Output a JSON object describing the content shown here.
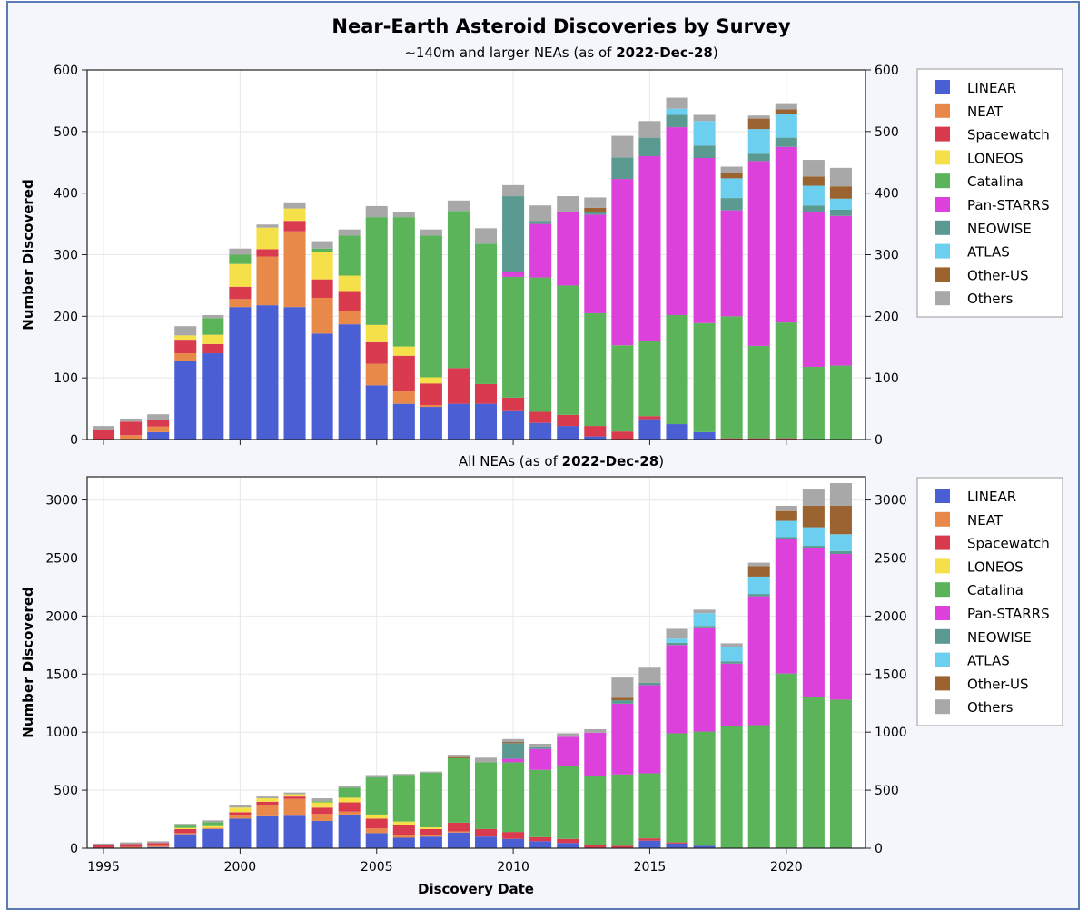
{
  "title": "Near-Earth Asteroid Discoveries by Survey",
  "subtitle_top": {
    "prefix": "~140m and larger NEAs (as of ",
    "date": "2022-Dec-28",
    "suffix": ")"
  },
  "subtitle_bottom": {
    "prefix": "All NEAs (as of ",
    "date": "2022-Dec-28",
    "suffix": ")"
  },
  "xlabel": "Discovery Date",
  "ylabel": "Number Discovered",
  "colors": {
    "LINEAR": "#4a5fd4",
    "NEAT": "#e8894a",
    "Spacewatch": "#d93a4e",
    "LONEOS": "#f6e04a",
    "Catalina": "#5bb35a",
    "Pan-STARRS": "#dc41dc",
    "NEOWISE": "#5a9a90",
    "ATLAS": "#6dcfef",
    "Other-US": "#9a6330",
    "Others": "#a8a8a8"
  },
  "chart_data": [
    {
      "type": "bar",
      "stacked": true,
      "title": "Near-Earth Asteroid Discoveries by Survey",
      "subtitle": "~140m and larger NEAs (as of 2022-Dec-28)",
      "xlabel": "",
      "ylabel": "Number Discovered",
      "ylim": [
        0,
        600
      ],
      "yticks": [
        0,
        100,
        200,
        300,
        400,
        500,
        600
      ],
      "xticks": [
        1995,
        2000,
        2005,
        2010,
        2015,
        2020
      ],
      "grid": true,
      "legend": "right",
      "categories": [
        1995,
        1996,
        1997,
        1998,
        1999,
        2000,
        2001,
        2002,
        2003,
        2004,
        2005,
        2006,
        2007,
        2008,
        2009,
        2010,
        2011,
        2012,
        2013,
        2014,
        2015,
        2016,
        2017,
        2018,
        2019,
        2020,
        2021,
        2022
      ],
      "series": [
        {
          "name": "LINEAR",
          "values": [
            0,
            0,
            12,
            128,
            140,
            215,
            218,
            215,
            172,
            187,
            88,
            58,
            53,
            58,
            58,
            46,
            27,
            22,
            5,
            0,
            33,
            25,
            12,
            0,
            0,
            0,
            0,
            0
          ]
        },
        {
          "name": "NEAT",
          "values": [
            0,
            7,
            9,
            12,
            0,
            13,
            79,
            123,
            58,
            22,
            35,
            20,
            3,
            0,
            0,
            0,
            0,
            0,
            0,
            0,
            0,
            0,
            0,
            0,
            0,
            0,
            0,
            0
          ]
        },
        {
          "name": "Spacewatch",
          "values": [
            15,
            22,
            10,
            22,
            15,
            20,
            12,
            17,
            30,
            32,
            35,
            58,
            35,
            58,
            32,
            22,
            18,
            18,
            17,
            13,
            5,
            0,
            0,
            2,
            2,
            2,
            0,
            0
          ]
        },
        {
          "name": "LONEOS",
          "values": [
            0,
            0,
            0,
            7,
            15,
            37,
            35,
            20,
            45,
            25,
            28,
            15,
            10,
            0,
            0,
            0,
            0,
            0,
            0,
            0,
            0,
            0,
            0,
            0,
            0,
            0,
            0,
            0
          ]
        },
        {
          "name": "Catalina",
          "values": [
            0,
            0,
            0,
            0,
            27,
            15,
            0,
            0,
            5,
            65,
            175,
            210,
            230,
            255,
            228,
            196,
            218,
            210,
            183,
            140,
            122,
            177,
            177,
            198,
            150,
            188,
            118,
            120
          ]
        },
        {
          "name": "Pan-STARRS",
          "values": [
            0,
            0,
            0,
            0,
            0,
            0,
            0,
            0,
            0,
            0,
            0,
            0,
            0,
            0,
            0,
            8,
            87,
            120,
            160,
            270,
            300,
            305,
            268,
            172,
            300,
            285,
            252,
            243
          ]
        },
        {
          "name": "NEOWISE",
          "values": [
            0,
            0,
            0,
            0,
            0,
            0,
            0,
            0,
            0,
            0,
            0,
            0,
            0,
            0,
            0,
            123,
            5,
            0,
            5,
            35,
            30,
            20,
            20,
            20,
            12,
            15,
            10,
            10
          ]
        },
        {
          "name": "ATLAS",
          "values": [
            0,
            0,
            0,
            0,
            0,
            0,
            0,
            0,
            0,
            0,
            0,
            0,
            0,
            0,
            0,
            0,
            0,
            0,
            0,
            0,
            0,
            10,
            40,
            32,
            40,
            38,
            32,
            18
          ]
        },
        {
          "name": "Other-US",
          "values": [
            0,
            0,
            0,
            0,
            0,
            0,
            0,
            0,
            0,
            0,
            0,
            0,
            0,
            0,
            0,
            0,
            0,
            0,
            6,
            0,
            0,
            0,
            0,
            9,
            17,
            8,
            15,
            20
          ]
        },
        {
          "name": "Others",
          "values": [
            7,
            5,
            10,
            15,
            5,
            10,
            5,
            10,
            12,
            10,
            18,
            8,
            10,
            17,
            25,
            18,
            25,
            25,
            17,
            35,
            27,
            18,
            10,
            10,
            5,
            10,
            27,
            30
          ]
        }
      ]
    },
    {
      "type": "bar",
      "stacked": true,
      "subtitle": "All NEAs (as of 2022-Dec-28)",
      "xlabel": "Discovery Date",
      "ylabel": "Number Discovered",
      "ylim": [
        0,
        3200
      ],
      "yticks": [
        0,
        500,
        1000,
        1500,
        2000,
        2500,
        3000
      ],
      "xticks": [
        1995,
        2000,
        2005,
        2010,
        2015,
        2020
      ],
      "grid": true,
      "legend": "right",
      "categories": [
        1995,
        1996,
        1997,
        1998,
        1999,
        2000,
        2001,
        2002,
        2003,
        2004,
        2005,
        2006,
        2007,
        2008,
        2009,
        2010,
        2011,
        2012,
        2013,
        2014,
        2015,
        2016,
        2017,
        2018,
        2019,
        2020,
        2021,
        2022
      ],
      "series": [
        {
          "name": "LINEAR",
          "values": [
            0,
            0,
            10,
            120,
            165,
            255,
            275,
            280,
            235,
            290,
            130,
            90,
            100,
            135,
            100,
            80,
            60,
            45,
            0,
            0,
            65,
            40,
            20,
            0,
            0,
            0,
            0,
            0
          ]
        },
        {
          "name": "NEAT",
          "values": [
            0,
            10,
            10,
            10,
            10,
            25,
            100,
            145,
            60,
            25,
            40,
            25,
            15,
            10,
            0,
            0,
            0,
            0,
            0,
            0,
            0,
            0,
            0,
            0,
            0,
            0,
            0,
            0
          ]
        },
        {
          "name": "Spacewatch",
          "values": [
            25,
            25,
            25,
            35,
            0,
            30,
            25,
            20,
            55,
            80,
            85,
            85,
            50,
            75,
            65,
            60,
            35,
            35,
            25,
            20,
            20,
            10,
            0,
            0,
            0,
            0,
            0,
            0
          ]
        },
        {
          "name": "LONEOS",
          "values": [
            0,
            0,
            0,
            10,
            15,
            40,
            30,
            20,
            45,
            40,
            35,
            30,
            15,
            0,
            0,
            0,
            0,
            0,
            0,
            0,
            0,
            0,
            0,
            0,
            0,
            0,
            0,
            0
          ]
        },
        {
          "name": "Catalina",
          "values": [
            0,
            0,
            0,
            20,
            35,
            0,
            0,
            0,
            10,
            85,
            320,
            400,
            470,
            555,
            575,
            600,
            580,
            625,
            600,
            615,
            560,
            940,
            985,
            1050,
            1060,
            1505,
            1300,
            1280
          ]
        },
        {
          "name": "Pan-STARRS",
          "values": [
            0,
            0,
            0,
            0,
            0,
            0,
            0,
            0,
            0,
            0,
            0,
            0,
            0,
            0,
            0,
            30,
            180,
            255,
            370,
            610,
            760,
            760,
            890,
            540,
            1110,
            1160,
            1285,
            1255
          ]
        },
        {
          "name": "NEOWISE",
          "values": [
            0,
            0,
            0,
            0,
            0,
            0,
            0,
            0,
            0,
            0,
            0,
            0,
            0,
            0,
            0,
            135,
            15,
            0,
            0,
            30,
            20,
            20,
            20,
            20,
            20,
            15,
            20,
            25
          ]
        },
        {
          "name": "ATLAS",
          "values": [
            0,
            0,
            0,
            0,
            0,
            0,
            0,
            0,
            0,
            0,
            0,
            0,
            0,
            0,
            0,
            0,
            0,
            0,
            0,
            0,
            0,
            35,
            110,
            120,
            150,
            140,
            160,
            145
          ]
        },
        {
          "name": "Other-US",
          "values": [
            0,
            0,
            0,
            0,
            0,
            0,
            0,
            0,
            0,
            0,
            0,
            0,
            0,
            10,
            0,
            10,
            0,
            0,
            0,
            20,
            0,
            0,
            0,
            0,
            90,
            85,
            185,
            245
          ]
        },
        {
          "name": "Others",
          "values": [
            15,
            15,
            15,
            15,
            15,
            25,
            15,
            15,
            25,
            20,
            20,
            10,
            10,
            20,
            40,
            25,
            30,
            30,
            30,
            175,
            130,
            85,
            30,
            35,
            30,
            45,
            140,
            195
          ]
        }
      ]
    }
  ]
}
